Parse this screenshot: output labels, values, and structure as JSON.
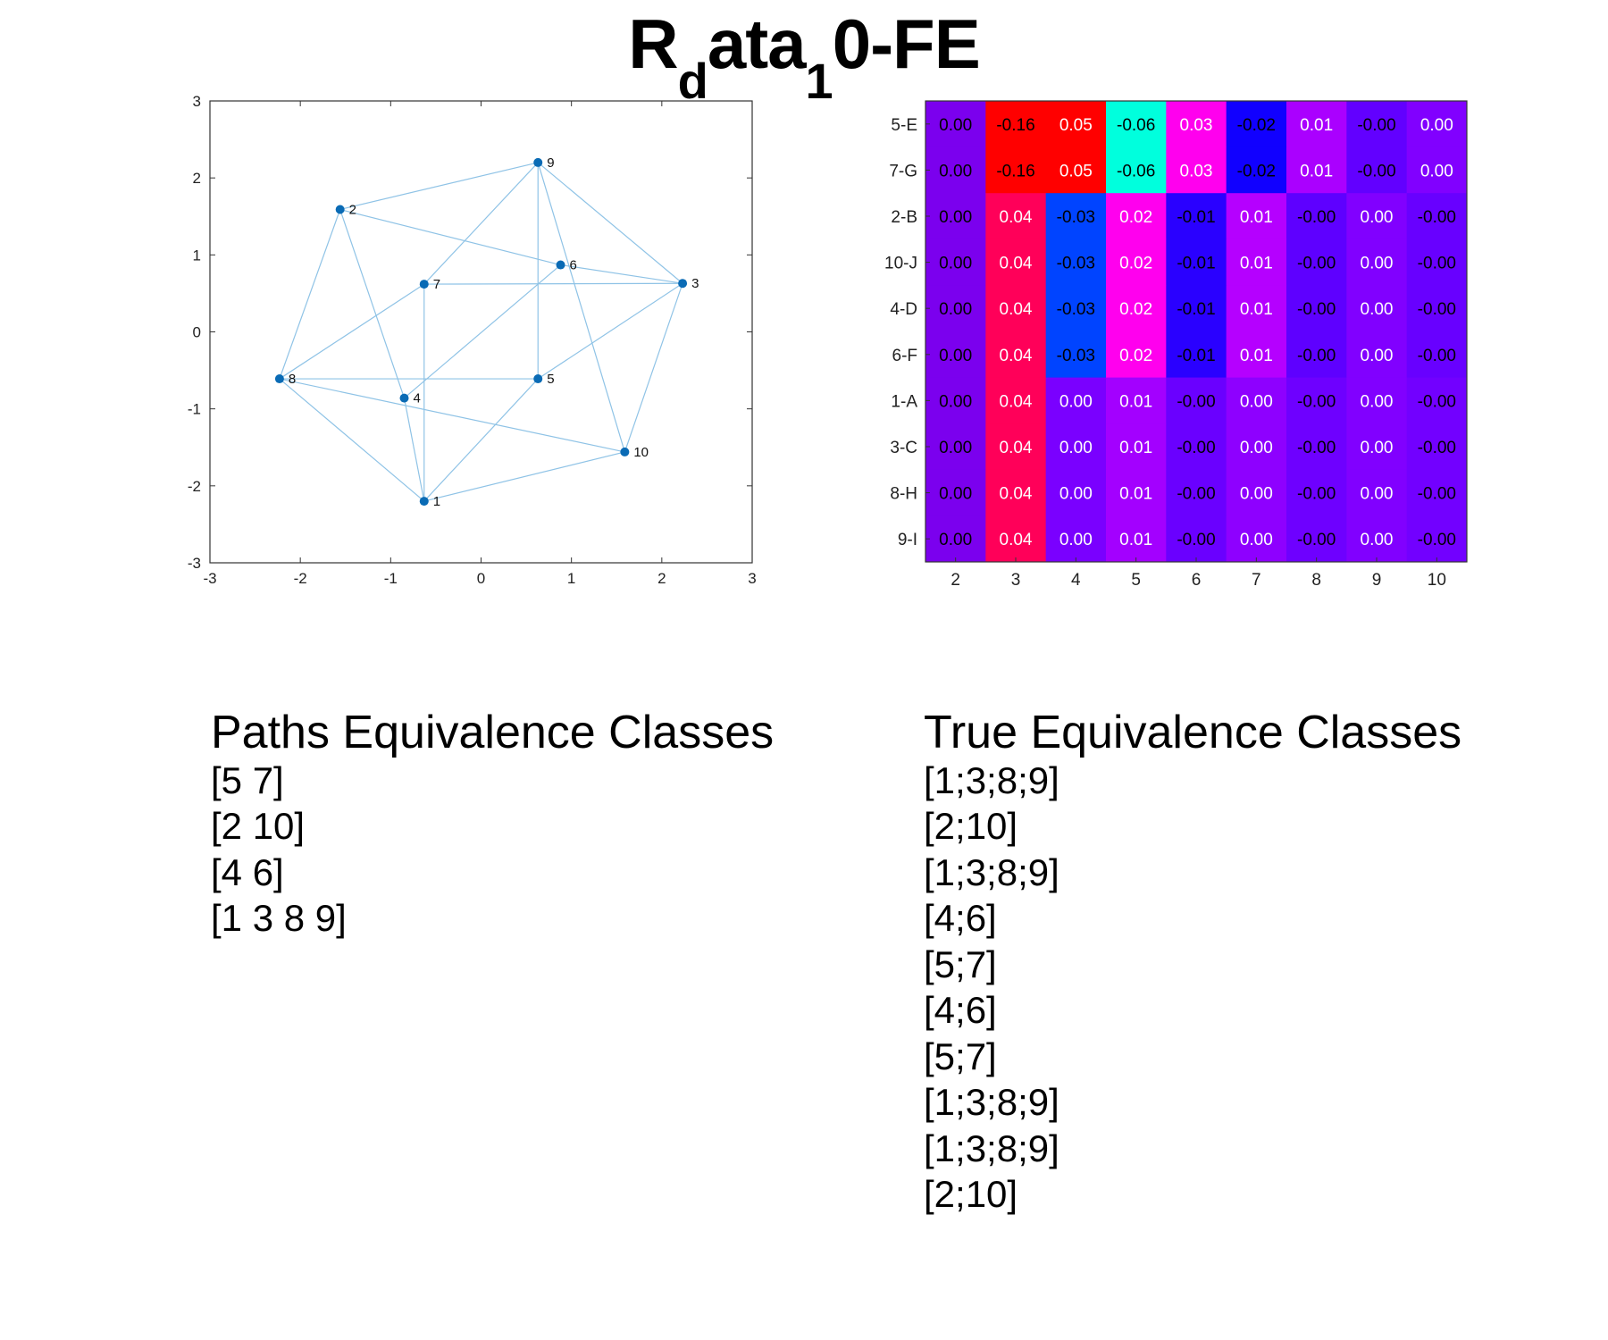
{
  "title": {
    "main_a": "R",
    "sub_a": "d",
    "main_b": "ata",
    "sub_b": "1",
    "main_c": "0-FE"
  },
  "chart_data": [
    {
      "type": "scatter",
      "subtype": "network-graph",
      "xlim": [
        -3,
        3
      ],
      "ylim": [
        -3,
        3
      ],
      "xticks": [
        -3,
        -2,
        -1,
        0,
        1,
        2,
        3
      ],
      "yticks": [
        -3,
        -2,
        -1,
        0,
        1,
        2,
        3
      ],
      "grid": false,
      "node_color": "#0a6bb5",
      "edge_color": "#8fc3e6",
      "nodes": [
        {
          "id": "1",
          "x": -0.63,
          "y": -2.2
        },
        {
          "id": "2",
          "x": -1.56,
          "y": 1.59
        },
        {
          "id": "3",
          "x": 2.23,
          "y": 0.63
        },
        {
          "id": "4",
          "x": -0.85,
          "y": -0.86
        },
        {
          "id": "5",
          "x": 0.63,
          "y": -0.61
        },
        {
          "id": "6",
          "x": 0.88,
          "y": 0.87
        },
        {
          "id": "7",
          "x": -0.63,
          "y": 0.62
        },
        {
          "id": "8",
          "x": -2.23,
          "y": -0.61
        },
        {
          "id": "9",
          "x": 0.63,
          "y": 2.2
        },
        {
          "id": "10",
          "x": 1.59,
          "y": -1.56
        }
      ],
      "edges": [
        [
          "2",
          "9"
        ],
        [
          "9",
          "3"
        ],
        [
          "3",
          "10"
        ],
        [
          "10",
          "1"
        ],
        [
          "1",
          "8"
        ],
        [
          "8",
          "2"
        ],
        [
          "2",
          "6"
        ],
        [
          "6",
          "3"
        ],
        [
          "7",
          "3"
        ],
        [
          "7",
          "9"
        ],
        [
          "7",
          "8"
        ],
        [
          "7",
          "1"
        ],
        [
          "2",
          "4"
        ],
        [
          "4",
          "1"
        ],
        [
          "4",
          "6"
        ],
        [
          "8",
          "5"
        ],
        [
          "8",
          "10"
        ],
        [
          "9",
          "5"
        ],
        [
          "9",
          "10"
        ],
        [
          "5",
          "1"
        ],
        [
          "5",
          "3"
        ]
      ]
    },
    {
      "type": "heatmap",
      "rows": [
        "5-E",
        "7-G",
        "2-B",
        "10-J",
        "4-D",
        "6-F",
        "1-A",
        "3-C",
        "8-H",
        "9-I"
      ],
      "columns": [
        "2",
        "3",
        "4",
        "5",
        "6",
        "7",
        "8",
        "9",
        "10"
      ],
      "values": [
        [
          0.0,
          -0.16,
          0.05,
          -0.06,
          0.03,
          -0.02,
          0.01,
          -0.0,
          0.0
        ],
        [
          0.0,
          -0.16,
          0.05,
          -0.06,
          0.03,
          -0.02,
          0.01,
          -0.0,
          0.0
        ],
        [
          0.0,
          0.04,
          -0.03,
          0.02,
          -0.01,
          0.01,
          -0.0,
          0.0,
          -0.0
        ],
        [
          0.0,
          0.04,
          -0.03,
          0.02,
          -0.01,
          0.01,
          -0.0,
          0.0,
          -0.0
        ],
        [
          0.0,
          0.04,
          -0.03,
          0.02,
          -0.01,
          0.01,
          -0.0,
          0.0,
          -0.0
        ],
        [
          0.0,
          0.04,
          -0.03,
          0.02,
          -0.01,
          0.01,
          -0.0,
          0.0,
          -0.0
        ],
        [
          0.0,
          0.04,
          0.0,
          0.01,
          -0.0,
          0.0,
          -0.0,
          0.0,
          -0.0
        ],
        [
          0.0,
          0.04,
          0.0,
          0.01,
          -0.0,
          0.0,
          -0.0,
          0.0,
          -0.0
        ],
        [
          0.0,
          0.04,
          0.0,
          0.01,
          -0.0,
          0.0,
          -0.0,
          0.0,
          -0.0
        ],
        [
          0.0,
          0.04,
          0.0,
          0.01,
          -0.0,
          0.0,
          -0.0,
          0.0,
          -0.0
        ]
      ],
      "labels": [
        [
          "0.00",
          "-0.16",
          "0.05",
          "-0.06",
          "0.03",
          "-0.02",
          "0.01",
          "-0.00",
          "0.00"
        ],
        [
          "0.00",
          "-0.16",
          "0.05",
          "-0.06",
          "0.03",
          "-0.02",
          "0.01",
          "-0.00",
          "0.00"
        ],
        [
          "0.00",
          "0.04",
          "-0.03",
          "0.02",
          "-0.01",
          "0.01",
          "-0.00",
          "0.00",
          "-0.00"
        ],
        [
          "0.00",
          "0.04",
          "-0.03",
          "0.02",
          "-0.01",
          "0.01",
          "-0.00",
          "0.00",
          "-0.00"
        ],
        [
          "0.00",
          "0.04",
          "-0.03",
          "0.02",
          "-0.01",
          "0.01",
          "-0.00",
          "0.00",
          "-0.00"
        ],
        [
          "0.00",
          "0.04",
          "-0.03",
          "0.02",
          "-0.01",
          "0.01",
          "-0.00",
          "0.00",
          "-0.00"
        ],
        [
          "0.00",
          "0.04",
          "0.00",
          "0.01",
          "-0.00",
          "0.00",
          "-0.00",
          "0.00",
          "-0.00"
        ],
        [
          "0.00",
          "0.04",
          "0.00",
          "0.01",
          "-0.00",
          "0.00",
          "-0.00",
          "0.00",
          "-0.00"
        ],
        [
          "0.00",
          "0.04",
          "0.00",
          "0.01",
          "-0.00",
          "0.00",
          "-0.00",
          "0.00",
          "-0.00"
        ],
        [
          "0.00",
          "0.04",
          "0.00",
          "0.01",
          "-0.00",
          "0.00",
          "-0.00",
          "0.00",
          "-0.00"
        ]
      ],
      "colors": [
        [
          "#7b00ee",
          "#ff0000",
          "#ff0000",
          "#00ffdd",
          "#ff00ee",
          "#1100ff",
          "#aa00ff",
          "#6200ff",
          "#8100ff"
        ],
        [
          "#7b00ee",
          "#ff0000",
          "#ff0000",
          "#00ffdd",
          "#ff00ee",
          "#1100ff",
          "#aa00ff",
          "#6200ff",
          "#8100ff"
        ],
        [
          "#7b00ee",
          "#ff0059",
          "#0044ff",
          "#ff00ee",
          "#2a00ff",
          "#b500ff",
          "#5e00ff",
          "#8100ff",
          "#6800ff"
        ],
        [
          "#7b00ee",
          "#ff0059",
          "#0044ff",
          "#ff00ee",
          "#2a00ff",
          "#b500ff",
          "#5e00ff",
          "#8100ff",
          "#6800ff"
        ],
        [
          "#7b00ee",
          "#ff0059",
          "#0044ff",
          "#ff00ee",
          "#2a00ff",
          "#b500ff",
          "#5e00ff",
          "#8100ff",
          "#6800ff"
        ],
        [
          "#7b00ee",
          "#ff0059",
          "#0044ff",
          "#ff00ee",
          "#2a00ff",
          "#b500ff",
          "#5e00ff",
          "#8100ff",
          "#6800ff"
        ],
        [
          "#7b00ee",
          "#ff0059",
          "#7a00ff",
          "#a300ff",
          "#6a00ff",
          "#8e00ff",
          "#6e00ff",
          "#8100ff",
          "#7200ff"
        ],
        [
          "#7b00ee",
          "#ff0059",
          "#7a00ff",
          "#a300ff",
          "#6a00ff",
          "#8e00ff",
          "#6e00ff",
          "#8100ff",
          "#7200ff"
        ],
        [
          "#7b00ee",
          "#ff0059",
          "#7a00ff",
          "#a300ff",
          "#6a00ff",
          "#8e00ff",
          "#6e00ff",
          "#8100ff",
          "#7200ff"
        ],
        [
          "#7b00ee",
          "#ff0059",
          "#7a00ff",
          "#a300ff",
          "#6a00ff",
          "#8e00ff",
          "#6e00ff",
          "#8100ff",
          "#7200ff"
        ]
      ],
      "text_colors": [
        [
          "#000000",
          "#000000",
          "#ffffff",
          "#000000",
          "#ffffff",
          "#000000",
          "#ffffff",
          "#000000",
          "#ffffff"
        ],
        [
          "#000000",
          "#000000",
          "#ffffff",
          "#000000",
          "#ffffff",
          "#000000",
          "#ffffff",
          "#000000",
          "#ffffff"
        ],
        [
          "#000000",
          "#ffffff",
          "#000000",
          "#ffffff",
          "#000000",
          "#ffffff",
          "#000000",
          "#ffffff",
          "#000000"
        ],
        [
          "#000000",
          "#ffffff",
          "#000000",
          "#ffffff",
          "#000000",
          "#ffffff",
          "#000000",
          "#ffffff",
          "#000000"
        ],
        [
          "#000000",
          "#ffffff",
          "#000000",
          "#ffffff",
          "#000000",
          "#ffffff",
          "#000000",
          "#ffffff",
          "#000000"
        ],
        [
          "#000000",
          "#ffffff",
          "#000000",
          "#ffffff",
          "#000000",
          "#ffffff",
          "#000000",
          "#ffffff",
          "#000000"
        ],
        [
          "#000000",
          "#ffffff",
          "#ffffff",
          "#ffffff",
          "#000000",
          "#ffffff",
          "#000000",
          "#ffffff",
          "#000000"
        ],
        [
          "#000000",
          "#ffffff",
          "#ffffff",
          "#ffffff",
          "#000000",
          "#ffffff",
          "#000000",
          "#ffffff",
          "#000000"
        ],
        [
          "#000000",
          "#ffffff",
          "#ffffff",
          "#ffffff",
          "#000000",
          "#ffffff",
          "#000000",
          "#ffffff",
          "#000000"
        ],
        [
          "#000000",
          "#ffffff",
          "#ffffff",
          "#ffffff",
          "#000000",
          "#ffffff",
          "#000000",
          "#ffffff",
          "#000000"
        ]
      ]
    }
  ],
  "paths_equivalence": {
    "heading": "Paths Equivalence Classes",
    "items": [
      "[5 7]",
      "[2 10]",
      "[4 6]",
      "[1 3 8 9]"
    ]
  },
  "true_equivalence": {
    "heading": "True Equivalence Classes",
    "items": [
      "[1;3;8;9]",
      "[2;10]",
      "[1;3;8;9]",
      "[4;6]",
      "[5;7]",
      "[4;6]",
      "[5;7]",
      "[1;3;8;9]",
      "[1;3;8;9]",
      "[2;10]"
    ]
  }
}
